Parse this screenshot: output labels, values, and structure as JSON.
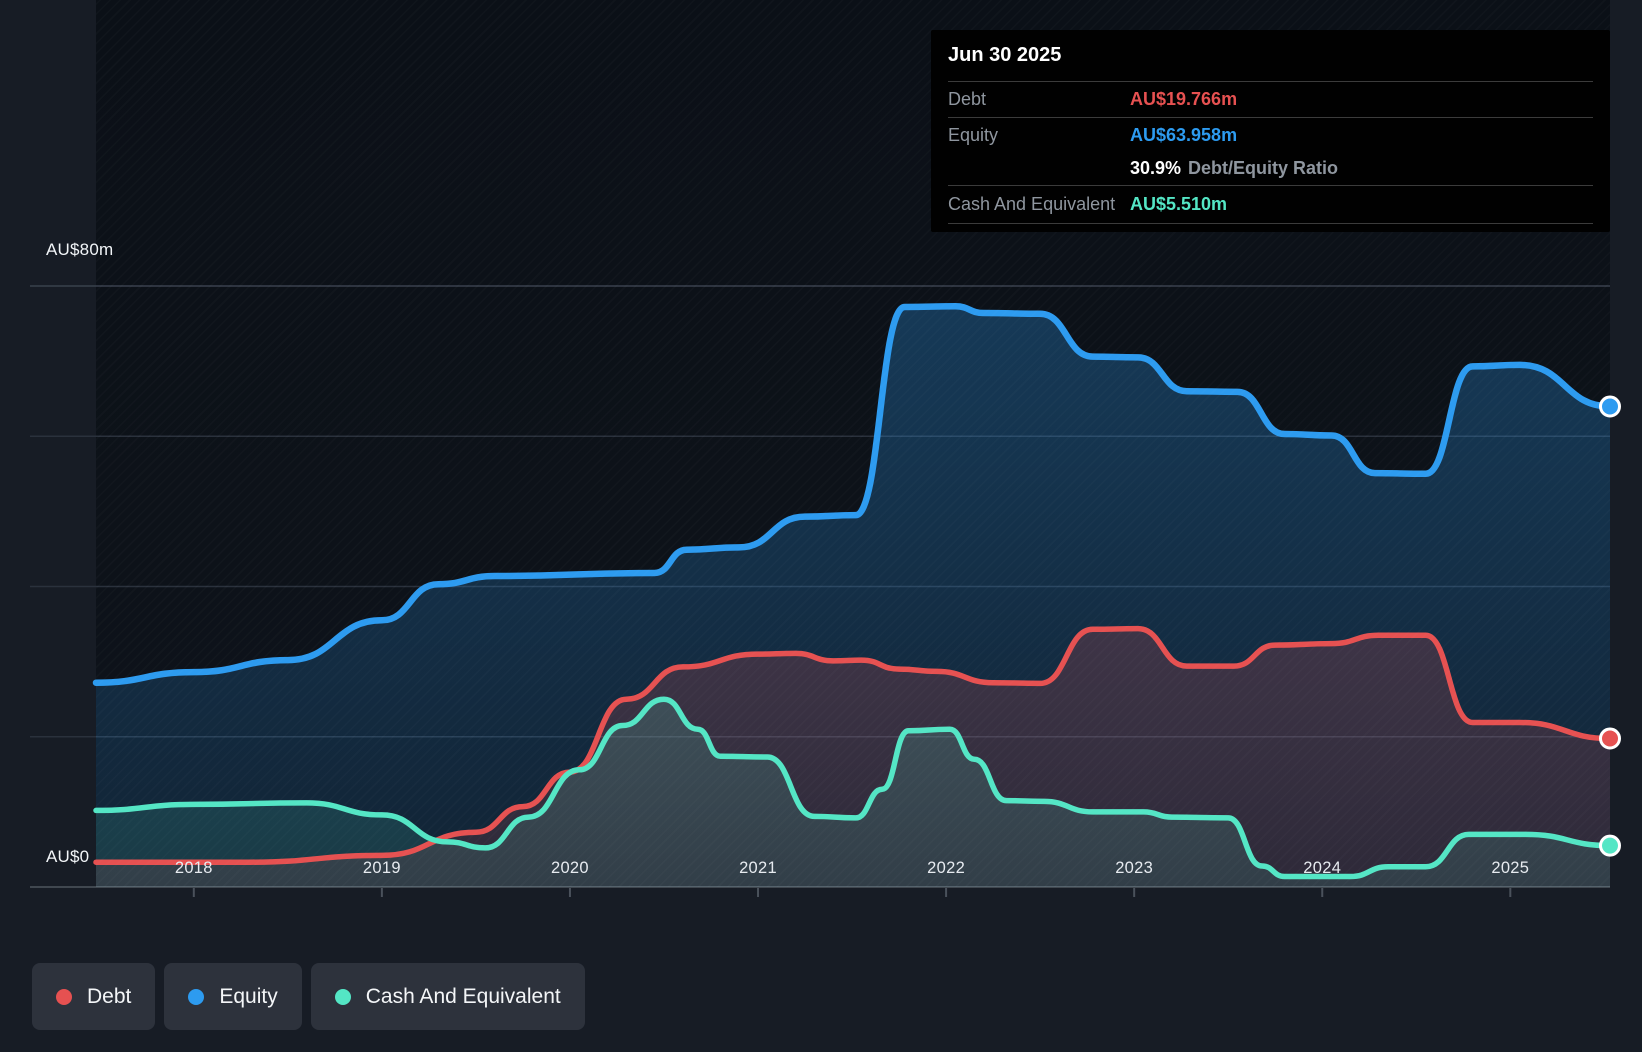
{
  "colors": {
    "debt": "#e65151",
    "equity": "#2d9bf0",
    "cash": "#54e6c5",
    "ratio_text": "#ffffff",
    "label_gray": "#8f969f",
    "tooltip_bg": "#010101",
    "page_bg": "#171c25",
    "plot_bg": "#0c1118"
  },
  "tooltip": {
    "date": "Jun 30 2025",
    "debt": {
      "label": "Debt",
      "value": "AU$19.766m"
    },
    "equity": {
      "label": "Equity",
      "value": "AU$63.958m"
    },
    "ratio": {
      "value": "30.9%",
      "label": "Debt/Equity Ratio"
    },
    "cash": {
      "label": "Cash And Equivalent",
      "value": "AU$5.510m"
    }
  },
  "legend": {
    "items": [
      {
        "key": "debt",
        "label": "Debt"
      },
      {
        "key": "equity",
        "label": "Equity"
      },
      {
        "key": "cash",
        "label": "Cash And Equivalent"
      }
    ]
  },
  "chart_data": {
    "type": "area",
    "x_unit": "year",
    "x_range": [
      2017.48,
      2025.53
    ],
    "x_ticks": [
      2018,
      2019,
      2020,
      2021,
      2022,
      2023,
      2024,
      2025
    ],
    "y_axis": {
      "min": 0,
      "max": 80,
      "gridline_step": 20,
      "top_label": "AU$80m",
      "zero_label": "AU$0",
      "unit": "AU$m"
    },
    "grid": true,
    "legend_position": "bottom-left",
    "series": [
      {
        "key": "equity",
        "name": "Equity",
        "end_value": 63.958,
        "points": [
          [
            2017.48,
            27.2
          ],
          [
            2018.0,
            28.6
          ],
          [
            2018.5,
            30.2
          ],
          [
            2019.0,
            35.5
          ],
          [
            2019.3,
            40.3
          ],
          [
            2019.6,
            41.4
          ],
          [
            2020.45,
            41.8
          ],
          [
            2020.62,
            44.9
          ],
          [
            2020.9,
            45.2
          ],
          [
            2021.25,
            49.3
          ],
          [
            2021.52,
            49.5
          ],
          [
            2021.78,
            77.2
          ],
          [
            2022.05,
            77.3
          ],
          [
            2022.2,
            76.4
          ],
          [
            2022.5,
            76.3
          ],
          [
            2022.78,
            70.6
          ],
          [
            2023.02,
            70.5
          ],
          [
            2023.28,
            66.0
          ],
          [
            2023.55,
            65.9
          ],
          [
            2023.8,
            60.3
          ],
          [
            2024.05,
            60.1
          ],
          [
            2024.28,
            55.1
          ],
          [
            2024.55,
            55.0
          ],
          [
            2024.8,
            69.3
          ],
          [
            2025.05,
            69.5
          ],
          [
            2025.53,
            63.958
          ]
        ]
      },
      {
        "key": "debt",
        "name": "Debt",
        "end_value": 19.766,
        "points": [
          [
            2017.48,
            3.3
          ],
          [
            2018.3,
            3.3
          ],
          [
            2019.0,
            4.2
          ],
          [
            2019.5,
            7.3
          ],
          [
            2019.75,
            10.7
          ],
          [
            2020.0,
            15.3
          ],
          [
            2020.3,
            25.0
          ],
          [
            2020.6,
            29.3
          ],
          [
            2021.0,
            31.0
          ],
          [
            2021.2,
            31.1
          ],
          [
            2021.4,
            30.1
          ],
          [
            2021.55,
            30.2
          ],
          [
            2021.75,
            29.0
          ],
          [
            2021.95,
            28.7
          ],
          [
            2022.25,
            27.2
          ],
          [
            2022.5,
            27.1
          ],
          [
            2022.78,
            34.3
          ],
          [
            2023.02,
            34.4
          ],
          [
            2023.28,
            29.4
          ],
          [
            2023.53,
            29.4
          ],
          [
            2023.75,
            32.2
          ],
          [
            2024.05,
            32.4
          ],
          [
            2024.3,
            33.5
          ],
          [
            2024.55,
            33.5
          ],
          [
            2024.8,
            21.9
          ],
          [
            2025.05,
            21.9
          ],
          [
            2025.53,
            19.766
          ]
        ]
      },
      {
        "key": "cash",
        "name": "Cash And Equivalent",
        "end_value": 5.51,
        "points": [
          [
            2017.48,
            10.2
          ],
          [
            2018.0,
            11.0
          ],
          [
            2018.6,
            11.2
          ],
          [
            2019.0,
            9.6
          ],
          [
            2019.35,
            6.0
          ],
          [
            2019.55,
            5.2
          ],
          [
            2019.78,
            9.3
          ],
          [
            2020.05,
            15.6
          ],
          [
            2020.28,
            21.5
          ],
          [
            2020.5,
            25.0
          ],
          [
            2020.68,
            21.0
          ],
          [
            2020.8,
            17.4
          ],
          [
            2021.05,
            17.3
          ],
          [
            2021.3,
            9.4
          ],
          [
            2021.52,
            9.2
          ],
          [
            2021.66,
            13.0
          ],
          [
            2021.8,
            20.8
          ],
          [
            2022.02,
            21.0
          ],
          [
            2022.15,
            17.0
          ],
          [
            2022.32,
            11.5
          ],
          [
            2022.52,
            11.4
          ],
          [
            2022.78,
            10.0
          ],
          [
            2023.05,
            10.0
          ],
          [
            2023.2,
            9.3
          ],
          [
            2023.5,
            9.2
          ],
          [
            2023.68,
            2.8
          ],
          [
            2023.8,
            1.4
          ],
          [
            2024.15,
            1.4
          ],
          [
            2024.35,
            2.7
          ],
          [
            2024.55,
            2.7
          ],
          [
            2024.78,
            7.0
          ],
          [
            2025.08,
            7.0
          ],
          [
            2025.53,
            5.51
          ]
        ]
      }
    ]
  }
}
